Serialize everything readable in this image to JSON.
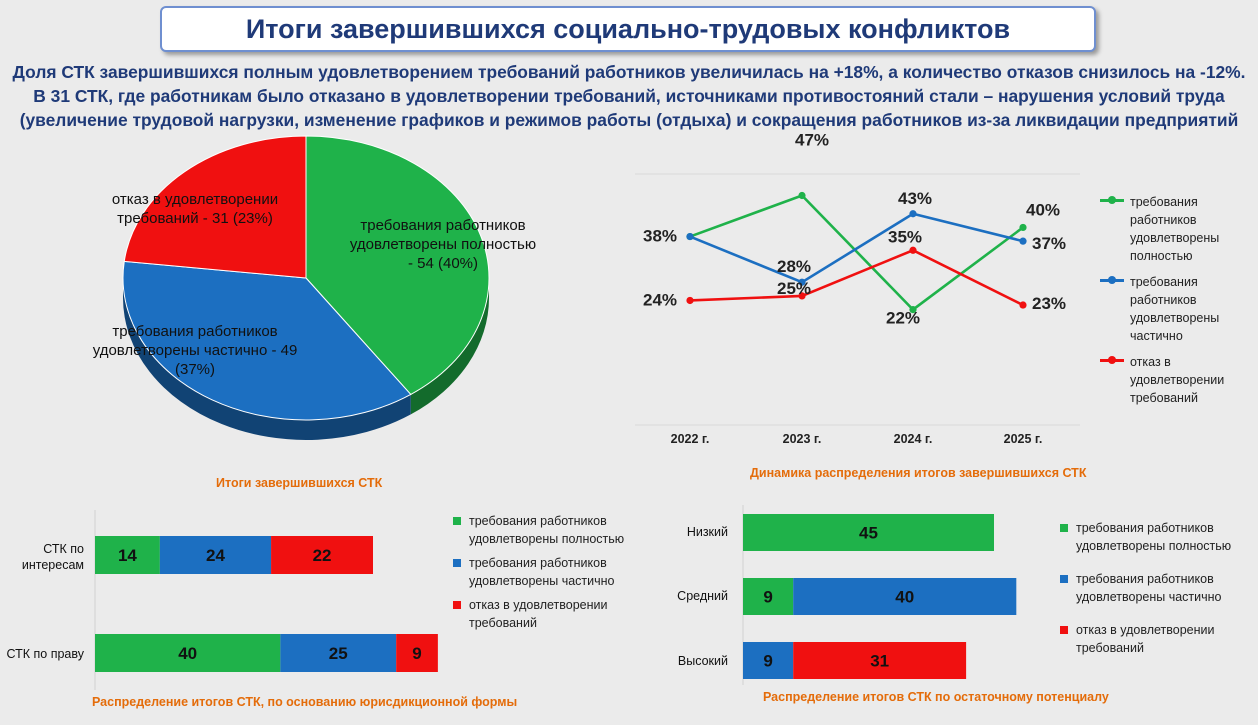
{
  "header": {
    "title": "Итоги завершившихся социально-трудовых конфликтов",
    "subtitle_lines": [
      "Доля СТК завершившихся полным удовлетворением требований работников увеличилась на +18%, а количество отказов снизилось на -12%.",
      "В 31 СТК, где работникам было отказано в удовлетворении требований, источниками противостояний стали – нарушения условий труда",
      "(увеличение трудовой нагрузки, изменение графиков и режимов работы (отдыха) и сокращения работников из-за ликвидации предприятий"
    ]
  },
  "colors": {
    "green": "#1fb24a",
    "blue": "#1c6fc1",
    "red": "#f01010",
    "caption": "#e46c0a",
    "title": "#1f3a78"
  },
  "chart_data": [
    {
      "type": "pie",
      "title": "Итоги завершившихся СТК",
      "slices": [
        {
          "label": "требования работников удовлетворены полностью - 54 (40%)",
          "value": 54,
          "percent": 40,
          "color": "#1fb24a"
        },
        {
          "label": "требования работников удовлетворены частично - 49 (37%)",
          "value": 49,
          "percent": 37,
          "color": "#1c6fc1"
        },
        {
          "label": "отказ в удовлетворении требований - 31 (23%)",
          "value": 31,
          "percent": 23,
          "color": "#f01010"
        }
      ]
    },
    {
      "type": "line",
      "title": "Динамика распределения итогов завершившихся СТК",
      "categories": [
        "2022 г.",
        "2023 г.",
        "2024 г.",
        "2025 г."
      ],
      "ylim": [
        0,
        55
      ],
      "grid": false,
      "legend": "right",
      "series": [
        {
          "name": "требования работников удовлетворены полностью",
          "values": [
            38,
            47,
            22,
            40
          ],
          "color": "#1fb24a",
          "labels": [
            "38%",
            "47%",
            "22%",
            "40%"
          ]
        },
        {
          "name": "требования работников удовлетворены частично",
          "values": [
            38,
            28,
            43,
            37
          ],
          "color": "#1c6fc1",
          "labels": [
            "",
            "28%",
            "43%",
            "37%"
          ]
        },
        {
          "name": "отказ в удовлетворении требований",
          "values": [
            24,
            25,
            35,
            23
          ],
          "color": "#f01010",
          "labels": [
            "24%",
            "25%",
            "35%",
            "23%"
          ]
        }
      ]
    },
    {
      "type": "bar",
      "orientation": "horizontal",
      "stacked": true,
      "title": "Распределение итогов СТК, по основанию юрисдикционной формы",
      "categories": [
        "СТК по интересам",
        "СТК по праву"
      ],
      "legend": "right",
      "series": [
        {
          "name": "требования работников удовлетворены полностью",
          "values": [
            14,
            40
          ],
          "color": "#1fb24a"
        },
        {
          "name": "требования работников удовлетворены частично",
          "values": [
            24,
            25
          ],
          "color": "#1c6fc1"
        },
        {
          "name": "отказ в удовлетворении требований",
          "values": [
            22,
            9
          ],
          "color": "#f01010"
        }
      ]
    },
    {
      "type": "bar",
      "orientation": "horizontal",
      "stacked": true,
      "title": "Распределение итогов СТК по остаточному потенциалу",
      "categories": [
        "Низкий",
        "Средний",
        "Высокий"
      ],
      "legend": "right",
      "series": [
        {
          "name": "требования работников удовлетворены полностью",
          "values": [
            45,
            9,
            null
          ],
          "color": "#1fb24a"
        },
        {
          "name": "требования работников удовлетворены частично",
          "values": [
            null,
            40,
            9
          ],
          "color": "#1c6fc1"
        },
        {
          "name": "отказ в удовлетворении требований",
          "values": [
            null,
            null,
            31
          ],
          "color": "#f01010"
        }
      ]
    }
  ],
  "legends": {
    "line": [
      "требования работников удовлетворены полностью",
      "требования работников удовлетворены частично",
      "отказ в удовлетворении требований"
    ],
    "bar1": [
      "требования работников удовлетворены полностью",
      "требования работников удовлетворены частично",
      "отказ в удовлетворении требований"
    ],
    "bar2": [
      "требования работников удовлетворены полностью",
      "требования работников удовлетворены частично",
      "отказ в удовлетворении требований"
    ]
  }
}
